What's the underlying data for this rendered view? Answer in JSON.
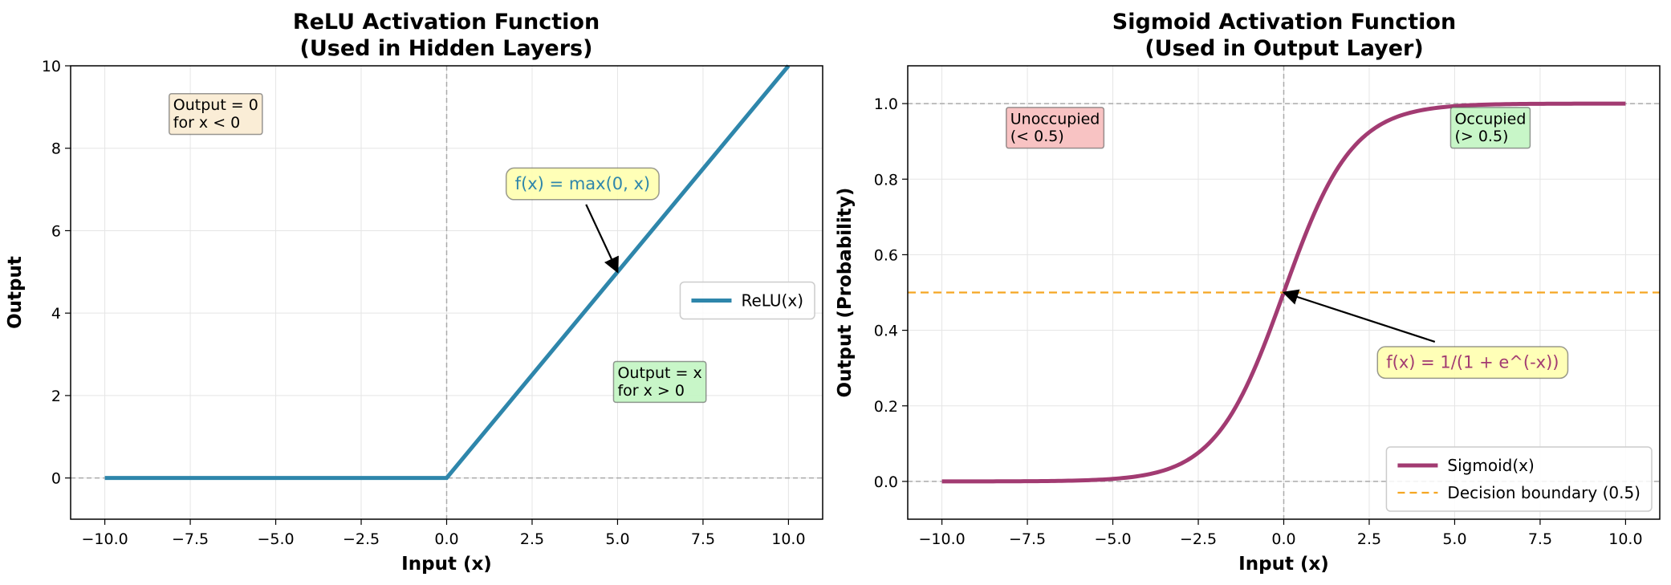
{
  "chart_data": [
    {
      "type": "line",
      "title": [
        "ReLU Activation Function",
        "(Used in Hidden Layers)"
      ],
      "xlabel": "Input (x)",
      "ylabel": "Output",
      "xlim": [
        -11,
        11
      ],
      "ylim": [
        -1,
        10
      ],
      "xticks": [
        -10,
        -7.5,
        -5,
        -2.5,
        0,
        2.5,
        5,
        7.5,
        10
      ],
      "xtick_labels": [
        "−10.0",
        "−7.5",
        "−5.0",
        "−2.5",
        "0.0",
        "2.5",
        "5.0",
        "7.5",
        "10.0"
      ],
      "yticks": [
        0,
        2,
        4,
        6,
        8,
        10
      ],
      "ytick_labels": [
        "0",
        "2",
        "4",
        "6",
        "8",
        "10"
      ],
      "grid": true,
      "legend_position": "center-right",
      "series": [
        {
          "name": "ReLU(x)",
          "color": "#2e86ab",
          "x": [
            -10,
            0,
            10
          ],
          "y": [
            0,
            0,
            10
          ]
        }
      ],
      "reference_lines": [
        {
          "orientation": "horizontal",
          "value": 0,
          "color": "#aaaaaa"
        },
        {
          "orientation": "vertical",
          "value": 0,
          "color": "#aaaaaa"
        }
      ],
      "annotations": [
        {
          "lines": [
            "Output = 0",
            "for x < 0"
          ],
          "x": -8,
          "y": 8.5,
          "box_color": "#faebd2"
        },
        {
          "lines": [
            "Output = x",
            "for x > 0"
          ],
          "x": 5,
          "y": 2,
          "box_color": "#c2f5c2"
        },
        {
          "lines": [
            "f(x) = max(0, x)"
          ],
          "x": 2,
          "y": 7,
          "text_color": "#2e86ab",
          "box_color": "#ffffaa",
          "arrow_to": [
            5,
            5
          ]
        }
      ]
    },
    {
      "type": "line",
      "title": [
        "Sigmoid Activation Function",
        "(Used in Output Layer)"
      ],
      "xlabel": "Input (x)",
      "ylabel": "Output (Probability)",
      "xlim": [
        -11,
        11
      ],
      "ylim": [
        -0.1,
        1.1
      ],
      "xticks": [
        -10,
        -7.5,
        -5,
        -2.5,
        0,
        2.5,
        5,
        7.5,
        10
      ],
      "xtick_labels": [
        "−10.0",
        "−7.5",
        "−5.0",
        "−2.5",
        "0.0",
        "2.5",
        "5.0",
        "7.5",
        "10.0"
      ],
      "yticks": [
        0,
        0.2,
        0.4,
        0.6,
        0.8,
        1.0
      ],
      "ytick_labels": [
        "0.0",
        "0.2",
        "0.4",
        "0.6",
        "0.8",
        "1.0"
      ],
      "grid": true,
      "legend_position": "lower-right",
      "series": [
        {
          "name": "Sigmoid(x)",
          "color": "#a23b72",
          "function": "sigmoid",
          "x_range": [
            -10,
            10
          ]
        },
        {
          "name": "Decision boundary (0.5)",
          "color": "#f5a623",
          "dashed": true,
          "horizontal_value": 0.5
        }
      ],
      "reference_lines": [
        {
          "orientation": "horizontal",
          "value": 0,
          "color": "#aaaaaa"
        },
        {
          "orientation": "horizontal",
          "value": 1,
          "color": "#aaaaaa"
        },
        {
          "orientation": "vertical",
          "value": 0,
          "color": "#aaaaaa"
        }
      ],
      "annotations": [
        {
          "lines": [
            "Unoccupied",
            "(< 0.5)"
          ],
          "x": -8,
          "y": 0.9,
          "box_color": "#f7bcbc"
        },
        {
          "lines": [
            "Occupied",
            "(> 0.5)"
          ],
          "x": 5,
          "y": 0.9,
          "box_color": "#c2f5c2"
        },
        {
          "lines": [
            "f(x) = 1/(1 + e^(-x))"
          ],
          "x": 3,
          "y": 0.3,
          "text_color": "#a23b72",
          "box_color": "#ffffaa",
          "arrow_to": [
            0,
            0.5
          ]
        }
      ]
    }
  ]
}
